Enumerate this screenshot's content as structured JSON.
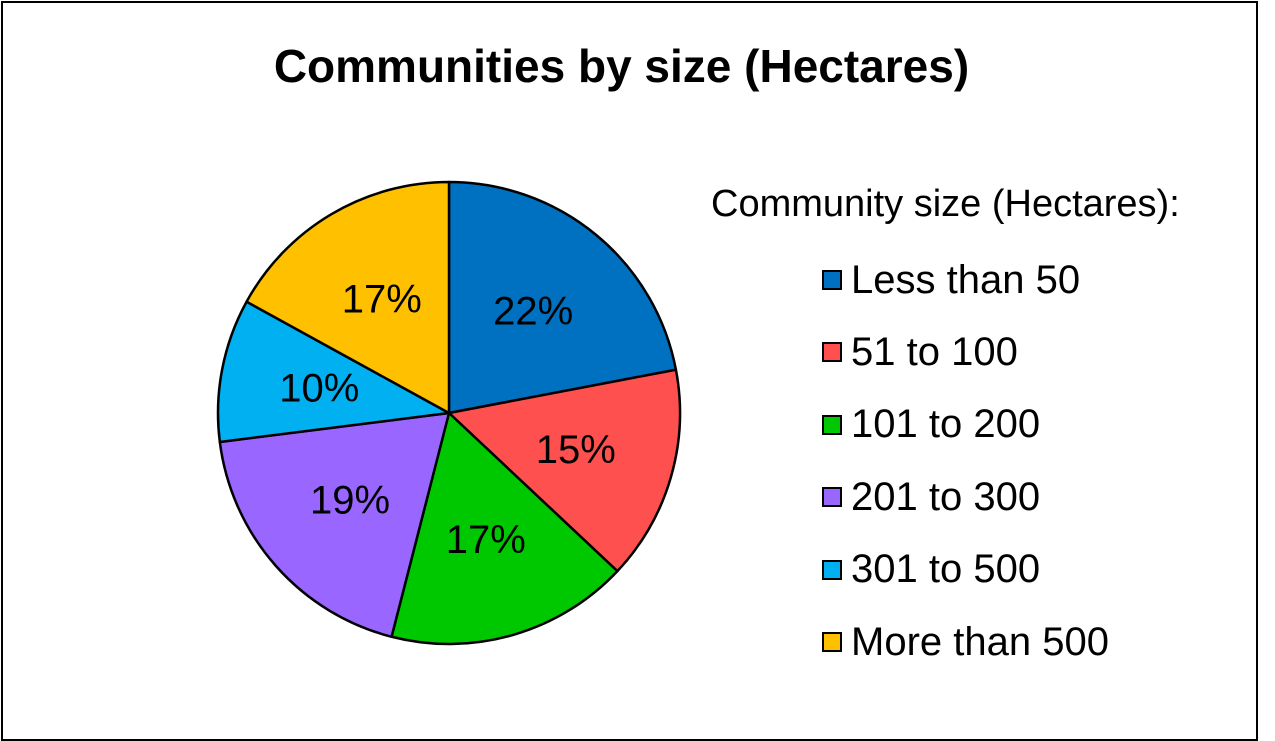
{
  "chart_data": {
    "type": "pie",
    "title": "Communities by size (Hectares)",
    "legend_title": "Community size (Hectares):",
    "legend_position": "right",
    "categories": [
      "Less than 50",
      "51 to 100",
      "101 to 200",
      "201 to 300",
      "301 to 500",
      "More than 500"
    ],
    "values": [
      22,
      15,
      17,
      19,
      10,
      17
    ],
    "value_labels": [
      "22%",
      "15%",
      "17%",
      "19%",
      "10%",
      "17%"
    ],
    "colors": [
      "#0070C0",
      "#FF5050",
      "#00C800",
      "#9966FF",
      "#00B0F0",
      "#FFC000"
    ]
  }
}
